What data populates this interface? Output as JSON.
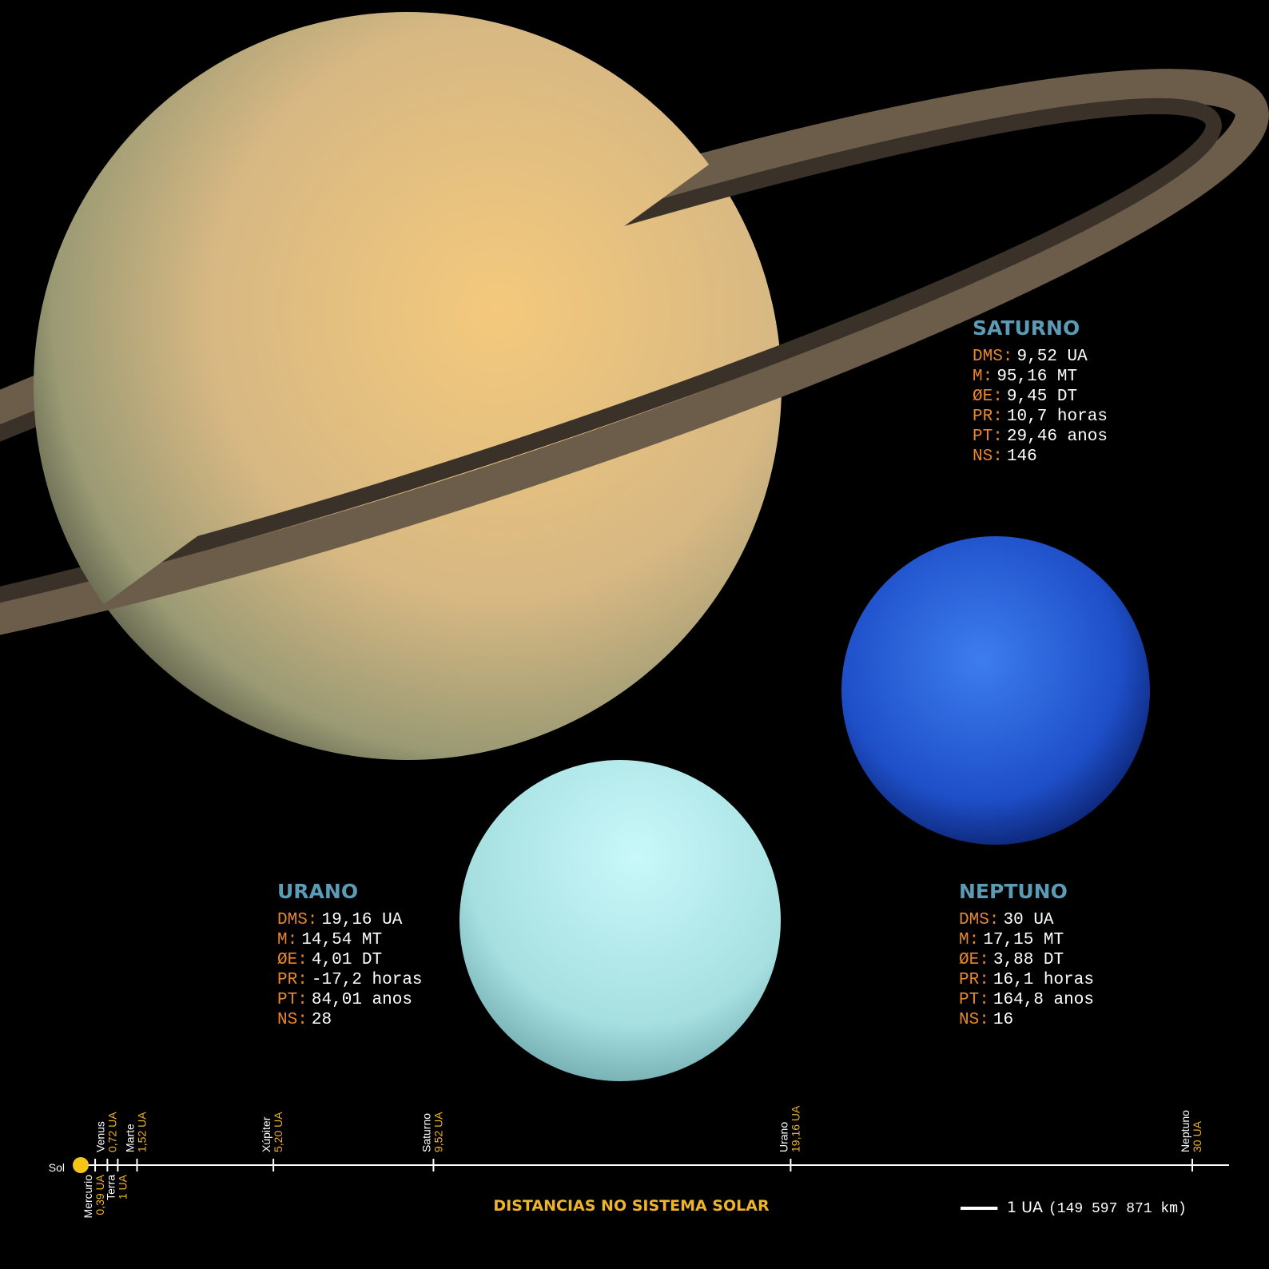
{
  "planets": [
    {
      "name": "SATURNO",
      "facts": [
        [
          "DMS:",
          "9,52 UA"
        ],
        [
          "M:",
          "95,16 MT"
        ],
        [
          "ØE:",
          "9,45 DT"
        ],
        [
          "PR:",
          "10,7 horas"
        ],
        [
          "PT:",
          "29,46 anos"
        ],
        [
          "NS:",
          "146"
        ]
      ]
    },
    {
      "name": "URANO",
      "facts": [
        [
          "DMS:",
          "19,16 UA"
        ],
        [
          "M:",
          "14,54 MT"
        ],
        [
          "ØE:",
          "4,01 DT"
        ],
        [
          "PR:",
          "-17,2 horas"
        ],
        [
          "PT:",
          "84,01 anos"
        ],
        [
          "NS:",
          "28"
        ]
      ]
    },
    {
      "name": "NEPTUNO",
      "facts": [
        [
          "DMS:",
          "30 UA"
        ],
        [
          "M:",
          "17,15 MT"
        ],
        [
          "ØE:",
          "3,88 DT"
        ],
        [
          "PR:",
          "16,1 horas"
        ],
        [
          "PT:",
          "164,8 anos"
        ],
        [
          "NS:",
          "16"
        ]
      ]
    }
  ],
  "axis": {
    "title": "DISTANCIAS NO SISTEMA SOLAR",
    "origin": "Sol",
    "bodies": [
      {
        "name": "Mercurio",
        "value": 0.39,
        "label": "0,39 UA"
      },
      {
        "name": "Venus",
        "value": 0.72,
        "label": "0,72 UA"
      },
      {
        "name": "Terra",
        "value": 1,
        "label": "1 UA"
      },
      {
        "name": "Marte",
        "value": 1.52,
        "label": "1,52 UA"
      },
      {
        "name": "Xúpiter",
        "value": 5.2,
        "label": "5,20 UA"
      },
      {
        "name": "Saturno",
        "value": 9.52,
        "label": "9,52 UA"
      },
      {
        "name": "Urano",
        "value": 19.16,
        "label": "19,16 UA"
      },
      {
        "name": "Neptuno",
        "value": 30,
        "label": "30 UA"
      }
    ],
    "scale": {
      "value": 1,
      "label": "1 UA",
      "note": "(149 597 871 km)"
    }
  }
}
